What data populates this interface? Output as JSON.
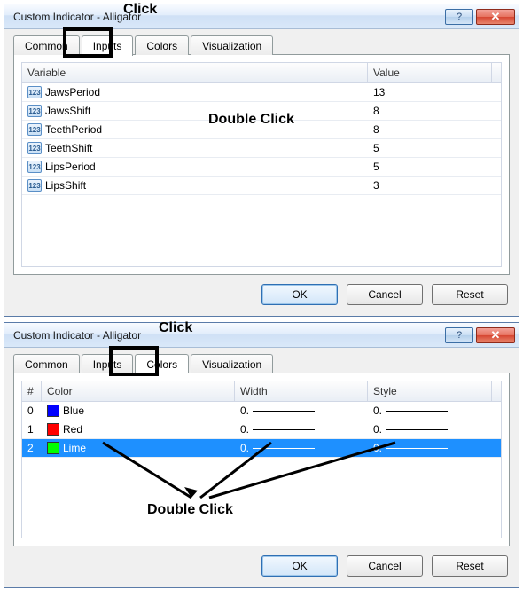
{
  "dialog1": {
    "title": "Custom Indicator - Alligator",
    "tabs": [
      "Common",
      "Inputs",
      "Colors",
      "Visualization"
    ],
    "activeTab": "Inputs",
    "annotation_click": "Click",
    "annotation_dblclick": "Double Click",
    "grid": {
      "headers": [
        "Variable",
        "Value"
      ],
      "rows": [
        {
          "var": "JawsPeriod",
          "val": "13"
        },
        {
          "var": "JawsShift",
          "val": "8"
        },
        {
          "var": "TeethPeriod",
          "val": "8"
        },
        {
          "var": "TeethShift",
          "val": "5"
        },
        {
          "var": "LipsPeriod",
          "val": "5"
        },
        {
          "var": "LipsShift",
          "val": "3"
        }
      ],
      "icon_label": "123"
    },
    "buttons": {
      "ok": "OK",
      "cancel": "Cancel",
      "reset": "Reset"
    }
  },
  "dialog2": {
    "title": "Custom Indicator - Alligator",
    "tabs": [
      "Common",
      "Inputs",
      "Colors",
      "Visualization"
    ],
    "activeTab": "Colors",
    "annotation_click": "Click",
    "annotation_dblclick": "Double Click",
    "grid": {
      "headers": [
        "#",
        "Color",
        "Width",
        "Style"
      ],
      "rows": [
        {
          "idx": "0",
          "name": "Blue",
          "hex": "#0000ff",
          "width": "0.",
          "style": "0."
        },
        {
          "idx": "1",
          "name": "Red",
          "hex": "#ff0000",
          "width": "0.",
          "style": "0."
        },
        {
          "idx": "2",
          "name": "Lime",
          "hex": "#00ff00",
          "width": "0.",
          "style": "0.",
          "selected": true
        }
      ]
    },
    "buttons": {
      "ok": "OK",
      "cancel": "Cancel",
      "reset": "Reset"
    }
  },
  "style": {
    "selection_bg": "#1e90ff",
    "border_color": "#5a7ba8",
    "close_bg": "#d64531",
    "col_widths_inputs": {
      "var": 390,
      "val": 140
    },
    "col_widths_colors": {
      "idx": 22,
      "color": 218,
      "width": 150,
      "style": 140
    }
  }
}
